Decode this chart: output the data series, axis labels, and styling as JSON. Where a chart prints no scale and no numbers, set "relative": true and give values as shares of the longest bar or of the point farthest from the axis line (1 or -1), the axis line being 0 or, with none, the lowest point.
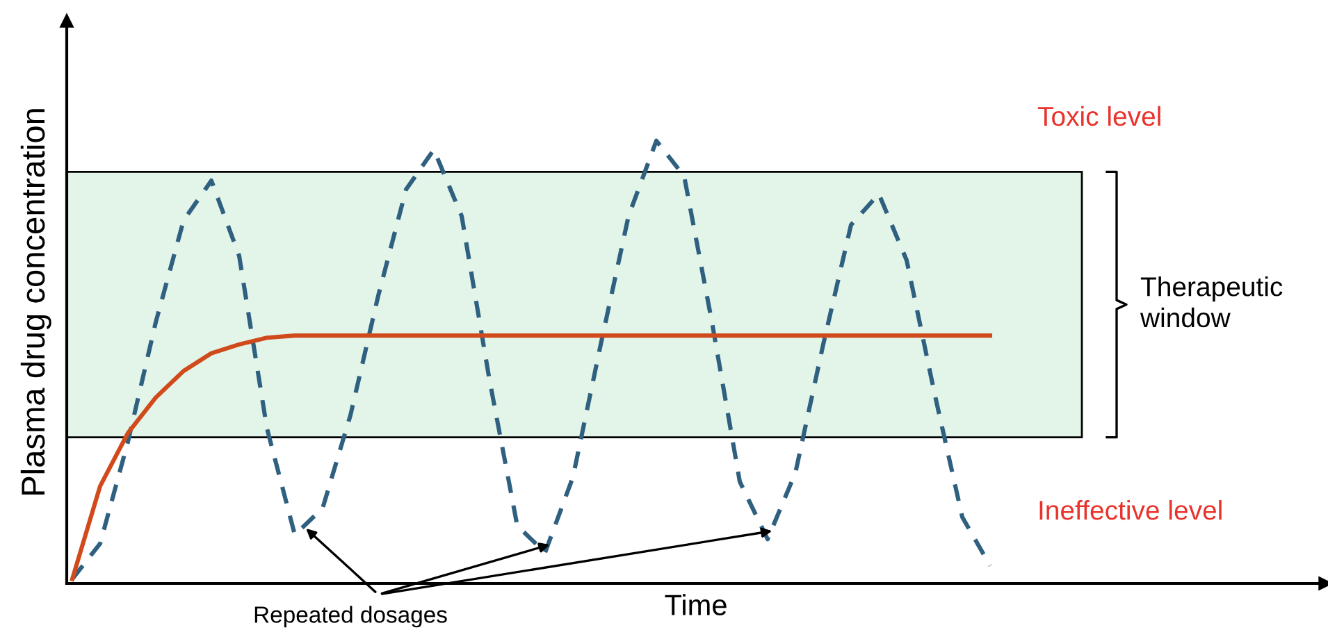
{
  "chart_data": {
    "type": "line",
    "relative": true,
    "xlabel": "Time",
    "ylabel": "Plasma drug concentration",
    "categories": [
      null,
      null,
      null,
      null,
      null,
      null,
      null,
      null,
      null,
      null,
      null,
      null,
      null,
      null,
      null,
      null,
      null,
      null,
      null,
      null,
      null,
      null,
      null,
      null,
      null,
      null,
      null,
      null,
      null,
      null,
      null,
      null,
      null,
      null
    ],
    "series": [
      {
        "color": "#2f6080",
        "line_style": "dashed",
        "values": [
          0.01,
          0.09,
          0.32,
          0.59,
          0.82,
          0.91,
          0.74,
          0.35,
          0.11,
          0.17,
          0.38,
          0.65,
          0.89,
          0.98,
          0.83,
          0.46,
          0.13,
          0.07,
          0.24,
          0.54,
          0.83,
          1.0,
          0.92,
          0.59,
          0.23,
          0.1,
          0.25,
          0.54,
          0.81,
          0.88,
          0.73,
          0.43,
          0.15,
          0.04
        ]
      },
      {
        "color": "#d04a1c",
        "line_style": "solid",
        "values": [
          0.01,
          0.22,
          0.34,
          0.42,
          0.48,
          0.52,
          0.54,
          0.555,
          0.56,
          0.56,
          0.56,
          0.56,
          0.56,
          0.56,
          0.56,
          0.56,
          0.56,
          0.56,
          0.56,
          0.56,
          0.56,
          0.56,
          0.56,
          0.56,
          0.56,
          0.56,
          0.56,
          0.56,
          0.56,
          0.56,
          0.56,
          0.56,
          0.56,
          0.56
        ]
      }
    ],
    "bands": [
      {
        "axis": "y",
        "from": 0.33,
        "to": 0.93,
        "color": "#e3f5e9",
        "label": "Therapeutic window"
      }
    ],
    "annotations": [
      "Toxic level",
      "Ineffective level",
      "Repeated dosages"
    ],
    "grid": false,
    "legend": false
  }
}
